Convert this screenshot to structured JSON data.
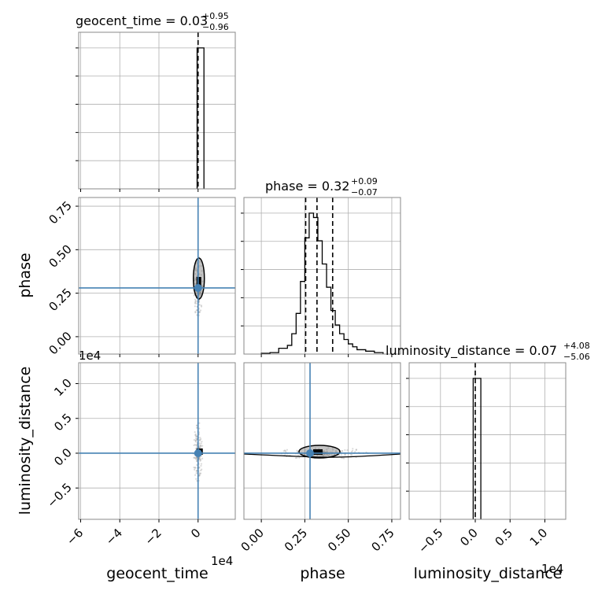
{
  "colors": {
    "truth": "#4682b4",
    "hist": "#000000",
    "grid": "#b0b0b0",
    "frame": "#888888",
    "points": "#999999"
  },
  "chart_data": {
    "type": "corner",
    "parameters": [
      "geocent_time",
      "phase",
      "luminosity_distance"
    ],
    "exponent_labels": {
      "geocent_time_x": "1e4",
      "luminosity_distance_x": "1e4",
      "luminosity_distance_y": "1e4"
    },
    "titles": [
      {
        "param": "geocent_time",
        "text": "geocent_time = 0.03",
        "sup": "+0.95",
        "sub": "−0.96"
      },
      {
        "param": "phase",
        "text": "phase = 0.32",
        "sup": "+0.09",
        "sub": "−0.07"
      },
      {
        "param": "luminosity_distance",
        "text": "luminosity_distance = 0.07",
        "sup": "+4.08",
        "sub": "−5.06"
      }
    ],
    "axes": {
      "geocent_time": {
        "range": [
          -6.1,
          1.9
        ],
        "ticks": [
          -6,
          -4,
          -2,
          0
        ],
        "tick_labels": [
          "−6",
          "−4",
          "−2",
          "0"
        ]
      },
      "phase": {
        "range": [
          -0.1,
          0.8
        ],
        "ticks": [
          0.0,
          0.25,
          0.5,
          0.75
        ],
        "tick_labels_x": [
          "0.00",
          "0.25",
          "0.50",
          "0.75"
        ],
        "tick_labels_y": [
          "0.00",
          "0.25",
          "0.50",
          "0.75"
        ]
      },
      "luminosity_distance": {
        "range": [
          -0.95,
          1.3
        ],
        "ticks": [
          -0.5,
          0.0,
          0.5,
          1.0
        ],
        "tick_labels_x": [
          "−0.5",
          "0.0",
          "0.5",
          "1.0"
        ],
        "tick_labels_y": [
          "−0.5",
          "0.0",
          "0.5",
          "1.0"
        ]
      }
    },
    "truths": {
      "geocent_time": 0.0,
      "phase": 0.28,
      "luminosity_distance": 0.0
    },
    "quantile_lines": {
      "geocent_time": [
        0.0
      ],
      "phase": [
        0.255,
        0.32,
        0.41
      ],
      "luminosity_distance": [
        0.0
      ]
    },
    "histograms": {
      "geocent_time": {
        "edges": [
          -0.05,
          0.1,
          0.3
        ],
        "counts": [
          1.0,
          1.0
        ]
      },
      "phase": {
        "edges": [
          0.0,
          0.05,
          0.1,
          0.15,
          0.175,
          0.2,
          0.225,
          0.25,
          0.275,
          0.3,
          0.325,
          0.35,
          0.375,
          0.4,
          0.425,
          0.45,
          0.475,
          0.5,
          0.525,
          0.55,
          0.6,
          0.65,
          0.7
        ],
        "counts": [
          0.005,
          0.01,
          0.04,
          0.06,
          0.14,
          0.28,
          0.5,
          0.8,
          0.97,
          0.94,
          0.78,
          0.62,
          0.46,
          0.3,
          0.2,
          0.14,
          0.1,
          0.07,
          0.05,
          0.03,
          0.02,
          0.01
        ]
      },
      "luminosity_distance": {
        "edges": [
          -0.03,
          0.03,
          0.08
        ],
        "counts": [
          1.0,
          1.0
        ]
      }
    },
    "grid": true
  }
}
